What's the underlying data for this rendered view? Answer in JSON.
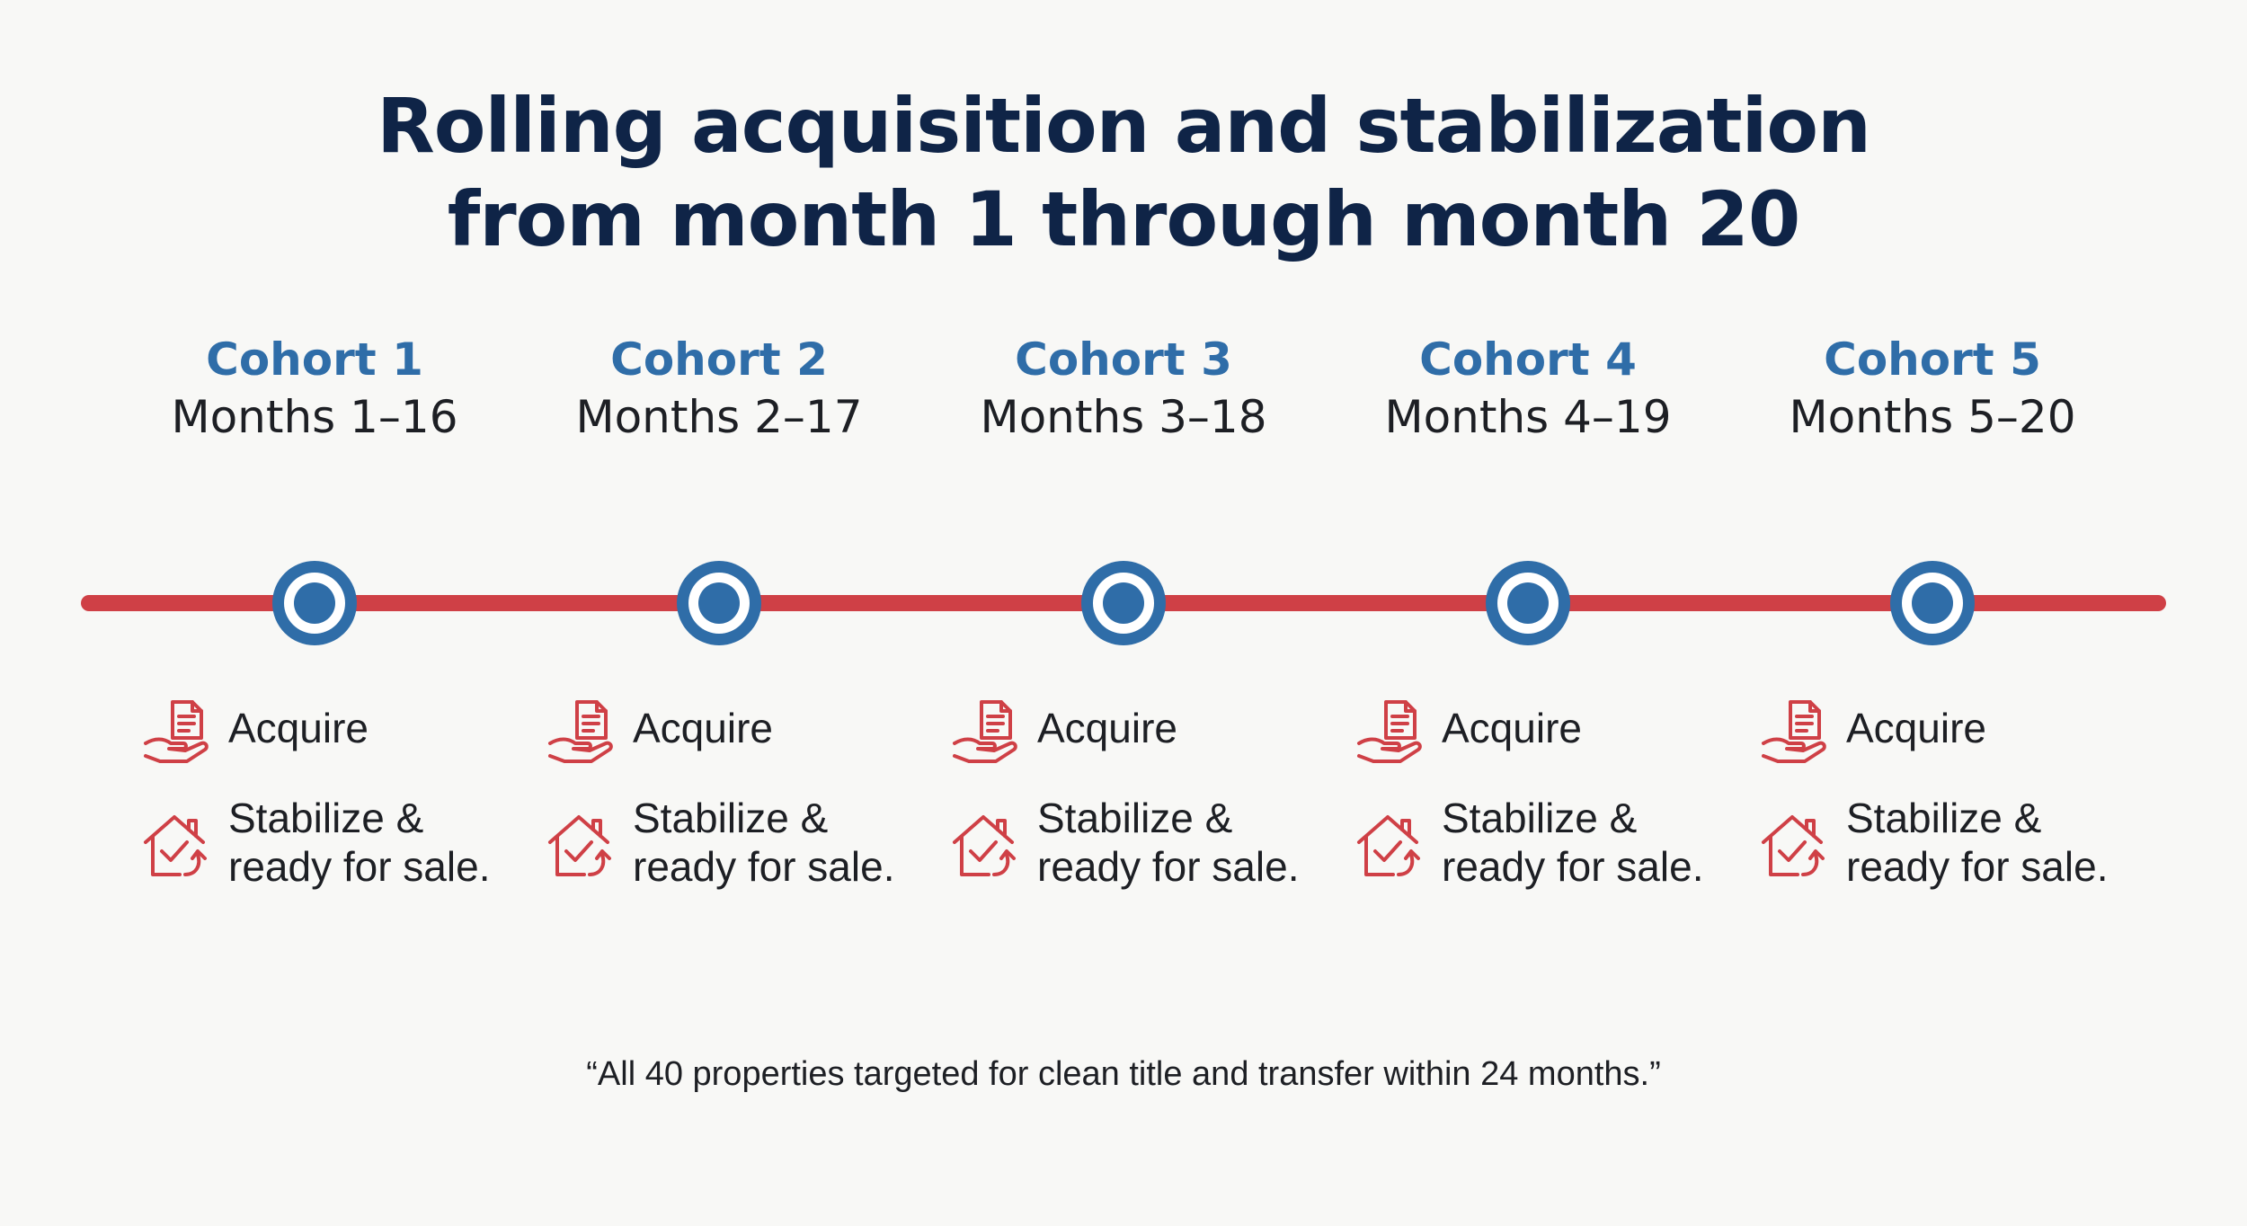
{
  "title": {
    "line1": "Rolling acquisition and stabilization",
    "line2": "from month 1 through month 20"
  },
  "cohorts": [
    {
      "name": "Cohort 1",
      "months": "Months 1–16",
      "acquire_label": "Acquire",
      "stabilize_line1": "Stabilize &",
      "stabilize_line2": "ready for sale."
    },
    {
      "name": "Cohort 2",
      "months": "Months 2–17",
      "acquire_label": "Acquire",
      "stabilize_line1": "Stabilize &",
      "stabilize_line2": "ready for sale."
    },
    {
      "name": "Cohort 3",
      "months": "Months 3–18",
      "acquire_label": "Acquire",
      "stabilize_line1": "Stabilize &",
      "stabilize_line2": "ready for sale."
    },
    {
      "name": "Cohort 4",
      "months": "Months 4–19",
      "acquire_label": "Acquire",
      "stabilize_line1": "Stabilize &",
      "stabilize_line2": "ready for sale."
    },
    {
      "name": "Cohort 5",
      "months": "Months 5–20",
      "acquire_label": "Acquire",
      "stabilize_line1": "Stabilize &",
      "stabilize_line2": "ready for sale."
    }
  ],
  "icons": {
    "acquire": "document-in-hand-icon",
    "stabilize": "house-check-icon"
  },
  "footnote": "“All 40 properties targeted for clean title and transfer within 24 months.”",
  "colors": {
    "title": "#0f2447",
    "cohort_name": "#2f6da8",
    "timeline": "#cf4046",
    "milestone": "#2f6da8",
    "icon": "#cf4046",
    "text": "#1d1f24",
    "background": "#f8f8f6"
  }
}
